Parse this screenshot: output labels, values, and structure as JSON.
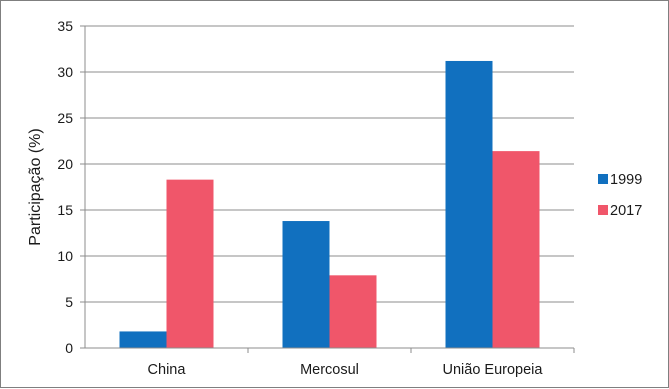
{
  "chart_data": {
    "type": "bar",
    "title": "",
    "xlabel": "",
    "ylabel": "Participação (%)",
    "ylim": [
      0,
      35
    ],
    "yticks": [
      0,
      5,
      10,
      15,
      20,
      25,
      30,
      35
    ],
    "grid": true,
    "legend_position": "right",
    "categories": [
      "China",
      "Mercosul",
      "União Europeia"
    ],
    "series": [
      {
        "name": "1999",
        "color": "#1170bf",
        "values": [
          1.8,
          13.8,
          31.2
        ]
      },
      {
        "name": "2017",
        "color": "#f0566a",
        "values": [
          18.3,
          7.9,
          21.4
        ]
      }
    ]
  }
}
